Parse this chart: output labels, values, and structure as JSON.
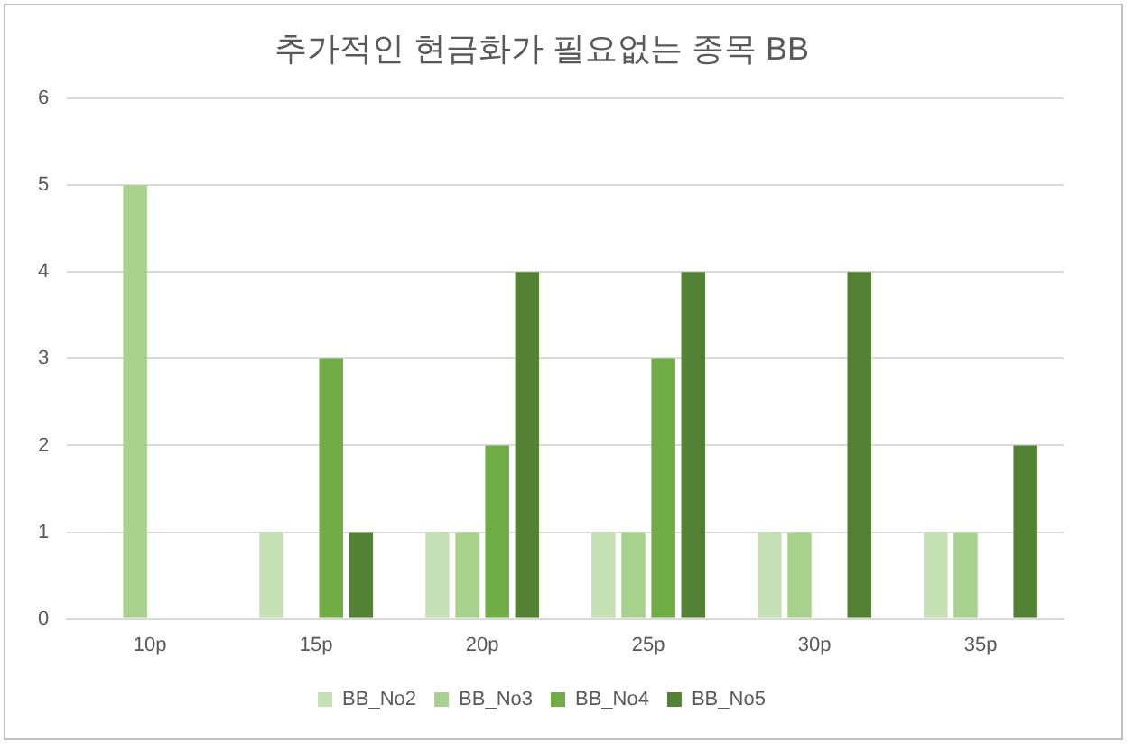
{
  "chart_data": {
    "type": "bar",
    "title": "추가적인 현금화가 필요없는 종목 BB",
    "categories": [
      "10p",
      "15p",
      "20p",
      "25p",
      "30p",
      "35p"
    ],
    "series": [
      {
        "name": "BB_No2",
        "color": "#c5e0b4",
        "values": [
          0,
          1,
          1,
          1,
          1,
          1
        ]
      },
      {
        "name": "BB_No3",
        "color": "#a9d18e",
        "values": [
          5,
          0,
          1,
          1,
          1,
          1
        ]
      },
      {
        "name": "BB_No4",
        "color": "#70ad47",
        "values": [
          0,
          3,
          2,
          3,
          0,
          0
        ]
      },
      {
        "name": "BB_No5",
        "color": "#548235",
        "values": [
          0,
          1,
          4,
          4,
          4,
          2
        ]
      }
    ],
    "ylim": [
      0,
      6
    ],
    "yticks": [
      0,
      1,
      2,
      3,
      4,
      5,
      6
    ],
    "grid": "y",
    "legend": "bottom"
  }
}
